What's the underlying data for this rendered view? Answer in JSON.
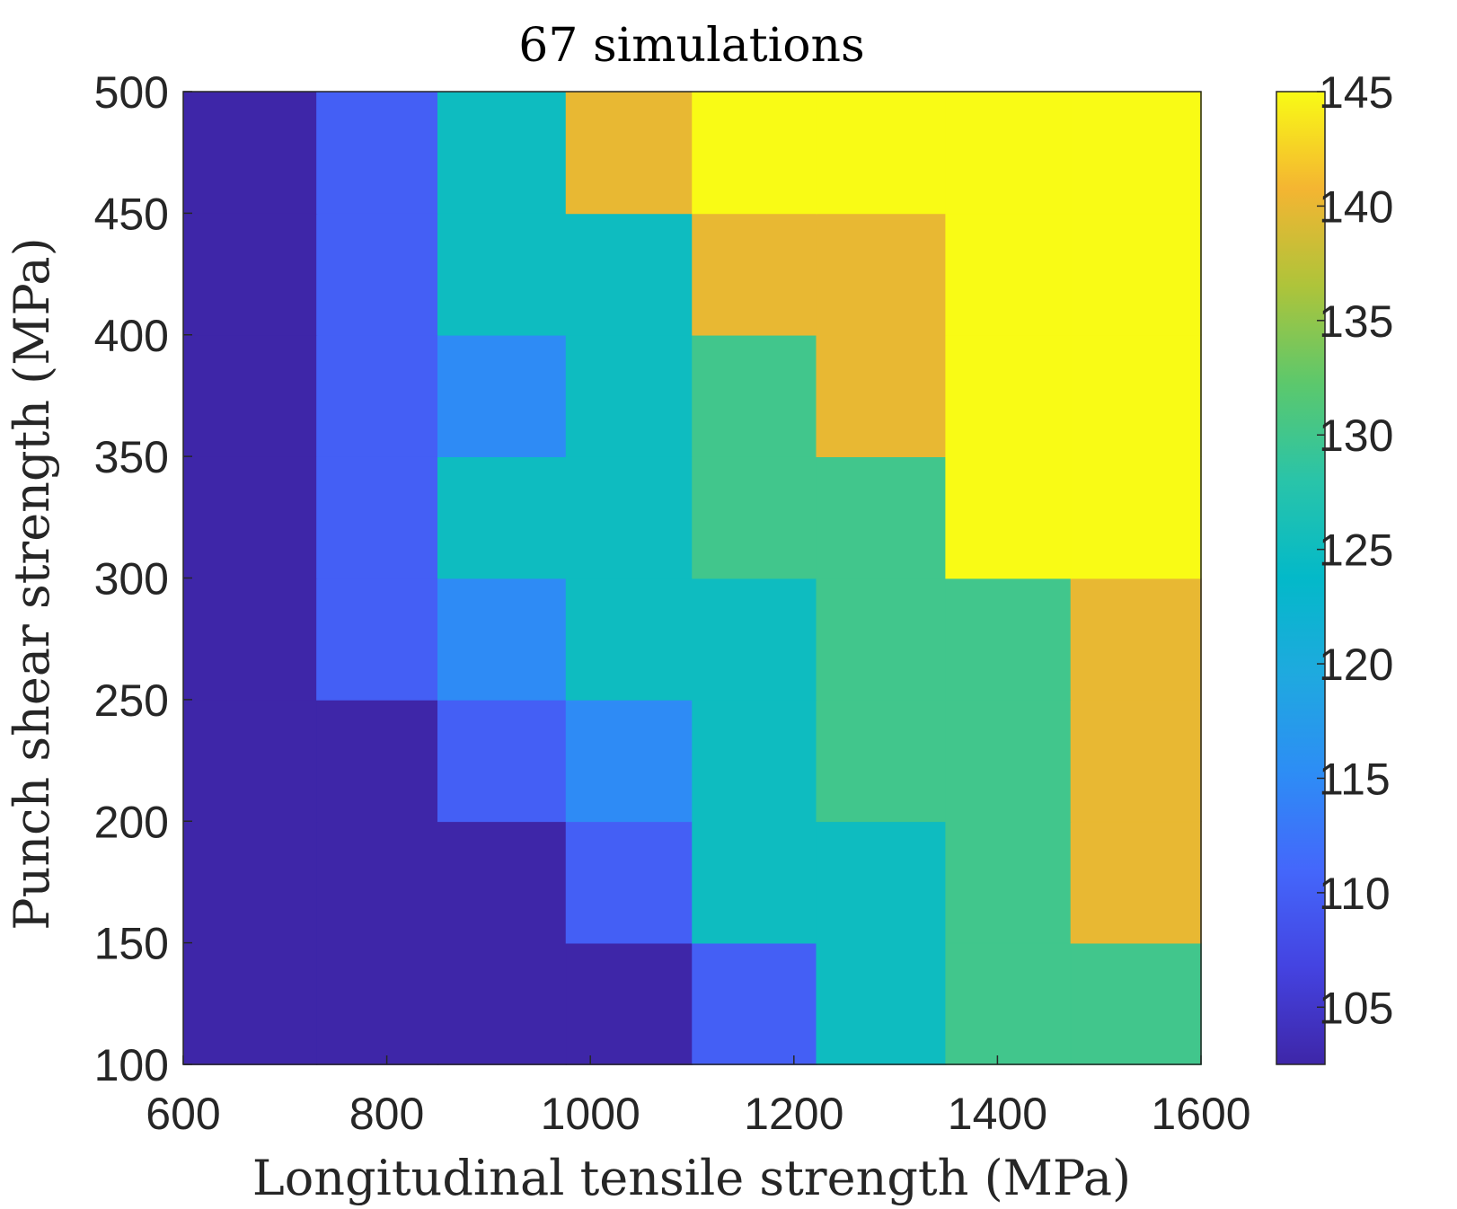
{
  "chart_data": {
    "type": "heatmap",
    "title": "67 simulations",
    "xlabel": "Longitudinal tensile strength (MPa)",
    "ylabel": "Punch shear strength (MPa)",
    "xlim": [
      600,
      1600
    ],
    "ylim": [
      100,
      500
    ],
    "xticks": [
      "600",
      "800",
      "1000",
      "1200",
      "1400",
      "1600"
    ],
    "yticks": [
      "100",
      "150",
      "200",
      "250",
      "300",
      "350",
      "400",
      "450",
      "500"
    ],
    "colorbar": {
      "range": [
        102.5,
        145
      ],
      "ticks": [
        "105",
        "110",
        "115",
        "120",
        "125",
        "130",
        "135",
        "140",
        "145"
      ],
      "colormap": "parula"
    },
    "x_edges": [
      600,
      731,
      850,
      976,
      1100,
      1222,
      1349,
      1472,
      1600
    ],
    "y_edges": [
      100,
      150,
      200,
      250,
      300,
      350,
      400,
      450,
      500
    ],
    "values_bottom_to_top": [
      [
        102.5,
        102.5,
        102.5,
        102.5,
        110,
        125,
        130,
        130
      ],
      [
        102.5,
        102.5,
        102.5,
        110,
        125,
        125,
        130,
        140
      ],
      [
        102.5,
        102.5,
        110,
        115,
        125,
        130,
        130,
        140
      ],
      [
        102.5,
        110,
        115,
        125,
        125,
        130,
        130,
        140
      ],
      [
        102.5,
        110,
        125,
        125,
        130,
        130,
        145,
        145
      ],
      [
        102.5,
        110,
        115,
        125,
        130,
        140,
        145,
        145
      ],
      [
        102.5,
        110,
        125,
        125,
        140,
        140,
        145,
        145
      ],
      [
        102.5,
        110,
        125,
        140,
        145,
        145,
        145,
        145
      ]
    ]
  }
}
